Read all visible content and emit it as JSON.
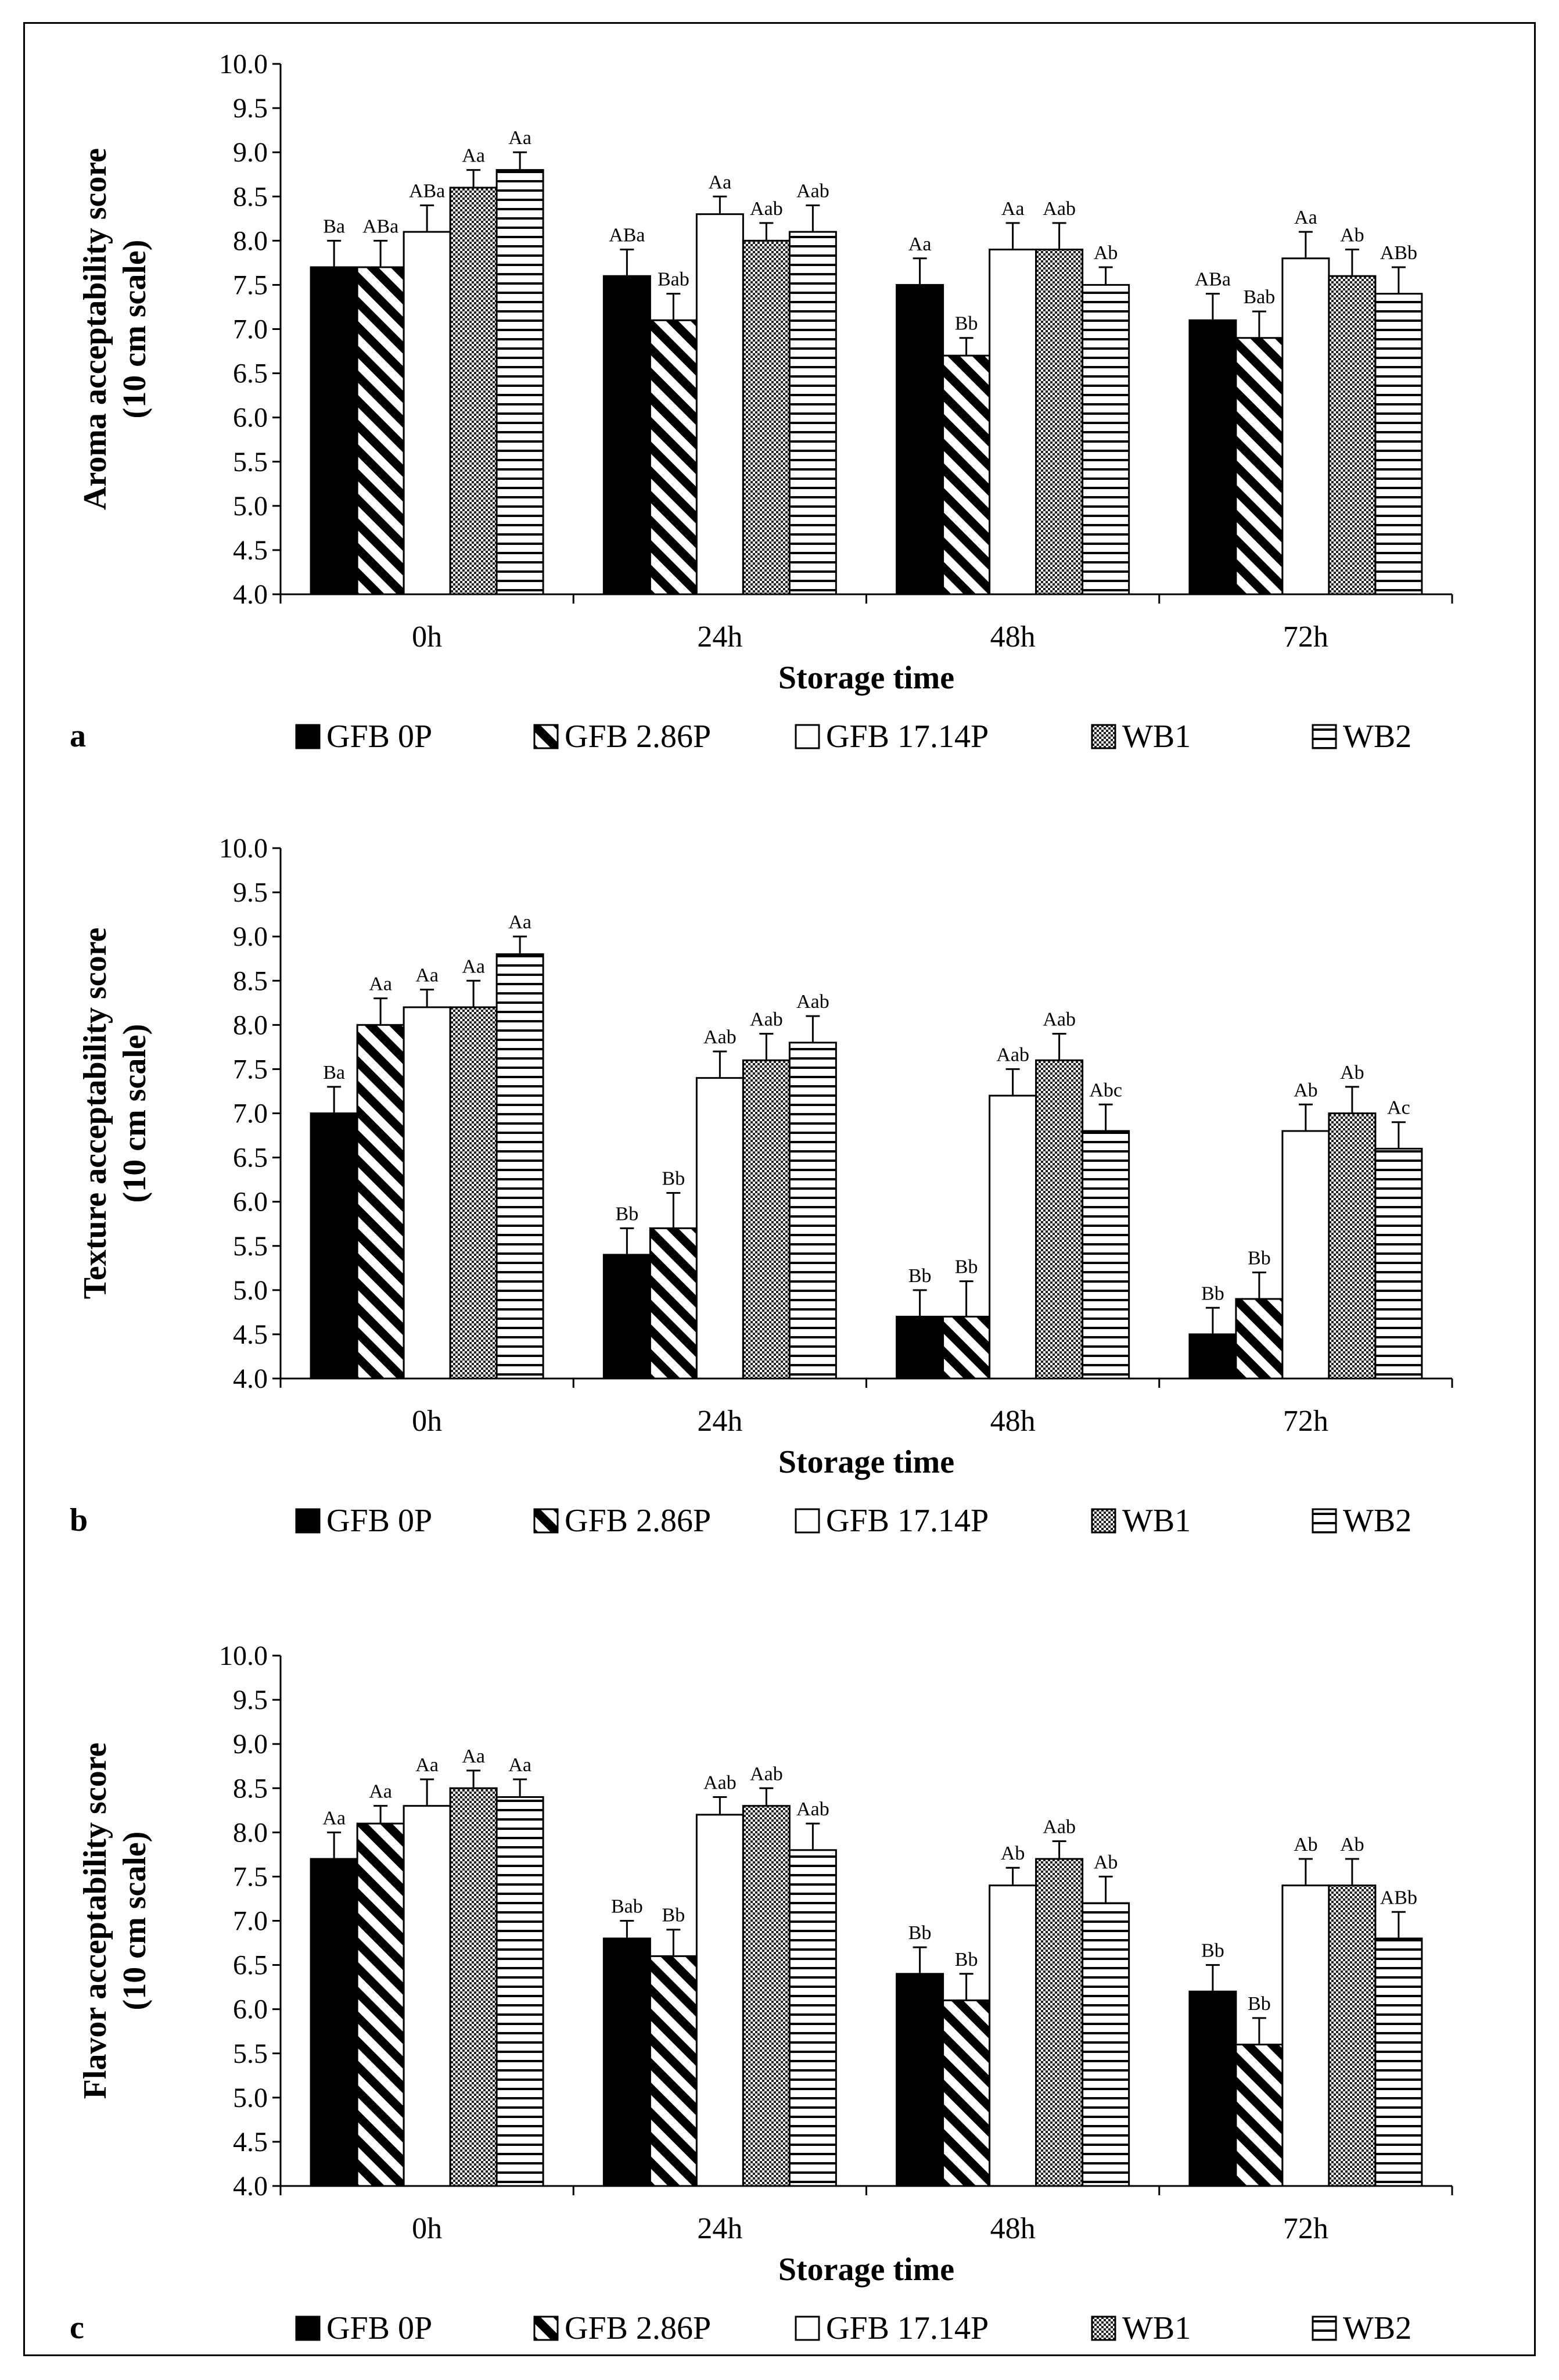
{
  "chart_data": [
    {
      "type": "bar",
      "panel_letter": "a",
      "title": "",
      "xlabel": "Storage time",
      "ylabel_line1": "Aroma acceptability score",
      "ylabel_line2": "(10 cm scale)",
      "ylim": [
        4.0,
        10.0
      ],
      "yticks": [
        "4.0",
        "4.5",
        "5.0",
        "5.5",
        "6.0",
        "6.5",
        "7.0",
        "7.5",
        "8.0",
        "8.5",
        "9.0",
        "9.5",
        "10.0"
      ],
      "categories": [
        "0h",
        "24h",
        "48h",
        "72h"
      ],
      "series": [
        {
          "name": "GFB 0P",
          "values": [
            7.7,
            7.6,
            7.5,
            7.1
          ],
          "errors": [
            0.3,
            0.3,
            0.3,
            0.3
          ],
          "labels": [
            "Ba",
            "ABa",
            "Aa",
            "ABa"
          ]
        },
        {
          "name": "GFB 2.86P",
          "values": [
            7.7,
            7.1,
            6.7,
            6.9
          ],
          "errors": [
            0.3,
            0.3,
            0.2,
            0.3
          ],
          "labels": [
            "ABa",
            "Bab",
            "Bb",
            "Bab"
          ]
        },
        {
          "name": "GFB 17.14P",
          "values": [
            8.1,
            8.3,
            7.9,
            7.8
          ],
          "errors": [
            0.3,
            0.2,
            0.3,
            0.3
          ],
          "labels": [
            "ABa",
            "Aa",
            "Aa",
            "Aa"
          ]
        },
        {
          "name": "WB1",
          "values": [
            8.6,
            8.0,
            7.9,
            7.6
          ],
          "errors": [
            0.2,
            0.2,
            0.3,
            0.3
          ],
          "labels": [
            "Aa",
            "Aab",
            "Aab",
            "Ab"
          ]
        },
        {
          "name": "WB2",
          "values": [
            8.8,
            8.1,
            7.5,
            7.4
          ],
          "errors": [
            0.2,
            0.3,
            0.2,
            0.3
          ],
          "labels": [
            "Aa",
            "Aab",
            "Ab",
            "ABb"
          ]
        }
      ]
    },
    {
      "type": "bar",
      "panel_letter": "b",
      "title": "",
      "xlabel": "Storage time",
      "ylabel_line1": "Texture acceptability score",
      "ylabel_line2": "(10 cm scale)",
      "ylim": [
        4.0,
        10.0
      ],
      "yticks": [
        "4.0",
        "4.5",
        "5.0",
        "5.5",
        "6.0",
        "6.5",
        "7.0",
        "7.5",
        "8.0",
        "8.5",
        "9.0",
        "9.5",
        "10.0"
      ],
      "categories": [
        "0h",
        "24h",
        "48h",
        "72h"
      ],
      "series": [
        {
          "name": "GFB 0P",
          "values": [
            7.0,
            5.4,
            4.7,
            4.5
          ],
          "errors": [
            0.3,
            0.3,
            0.3,
            0.3
          ],
          "labels": [
            "Ba",
            "Bb",
            "Bb",
            "Bb"
          ]
        },
        {
          "name": "GFB 2.86P",
          "values": [
            8.0,
            5.7,
            4.7,
            4.9
          ],
          "errors": [
            0.3,
            0.4,
            0.4,
            0.3
          ],
          "labels": [
            "Aa",
            "Bb",
            "Bb",
            "Bb"
          ]
        },
        {
          "name": "GFB 17.14P",
          "values": [
            8.2,
            7.4,
            7.2,
            6.8
          ],
          "errors": [
            0.2,
            0.3,
            0.3,
            0.3
          ],
          "labels": [
            "Aa",
            "Aab",
            "Aab",
            "Ab"
          ]
        },
        {
          "name": "WB1",
          "values": [
            8.2,
            7.6,
            7.6,
            7.0
          ],
          "errors": [
            0.3,
            0.3,
            0.3,
            0.3
          ],
          "labels": [
            "Aa",
            "Aab",
            "Aab",
            "Ab"
          ]
        },
        {
          "name": "WB2",
          "values": [
            8.8,
            7.8,
            6.8,
            6.6
          ],
          "errors": [
            0.2,
            0.3,
            0.3,
            0.3
          ],
          "labels": [
            "Aa",
            "Aab",
            "Abc",
            "Ac"
          ]
        }
      ]
    },
    {
      "type": "bar",
      "panel_letter": "c",
      "title": "",
      "xlabel": "Storage time",
      "ylabel_line1": "Flavor acceptability score",
      "ylabel_line2": "(10 cm scale)",
      "ylim": [
        4.0,
        10.0
      ],
      "yticks": [
        "4.0",
        "4.5",
        "5.0",
        "5.5",
        "6.0",
        "6.5",
        "7.0",
        "7.5",
        "8.0",
        "8.5",
        "9.0",
        "9.5",
        "10.0"
      ],
      "categories": [
        "0h",
        "24h",
        "48h",
        "72h"
      ],
      "series": [
        {
          "name": "GFB 0P",
          "values": [
            7.7,
            6.8,
            6.4,
            6.2
          ],
          "errors": [
            0.3,
            0.2,
            0.3,
            0.3
          ],
          "labels": [
            "Aa",
            "Bab",
            "Bb",
            "Bb"
          ]
        },
        {
          "name": "GFB 2.86P",
          "values": [
            8.1,
            6.6,
            6.1,
            5.6
          ],
          "errors": [
            0.2,
            0.3,
            0.3,
            0.3
          ],
          "labels": [
            "Aa",
            "Bb",
            "Bb",
            "Bb"
          ]
        },
        {
          "name": "GFB 17.14P",
          "values": [
            8.3,
            8.2,
            7.4,
            7.4
          ],
          "errors": [
            0.3,
            0.2,
            0.2,
            0.3
          ],
          "labels": [
            "Aa",
            "Aab",
            "Ab",
            "Ab"
          ]
        },
        {
          "name": "WB1",
          "values": [
            8.5,
            8.3,
            7.7,
            7.4
          ],
          "errors": [
            0.2,
            0.2,
            0.2,
            0.3
          ],
          "labels": [
            "Aa",
            "Aab",
            "Aab",
            "Ab"
          ]
        },
        {
          "name": "WB2",
          "values": [
            8.4,
            7.8,
            7.2,
            6.8
          ],
          "errors": [
            0.2,
            0.3,
            0.3,
            0.3
          ],
          "labels": [
            "Aa",
            "Aab",
            "Ab",
            "ABb"
          ]
        }
      ]
    }
  ]
}
